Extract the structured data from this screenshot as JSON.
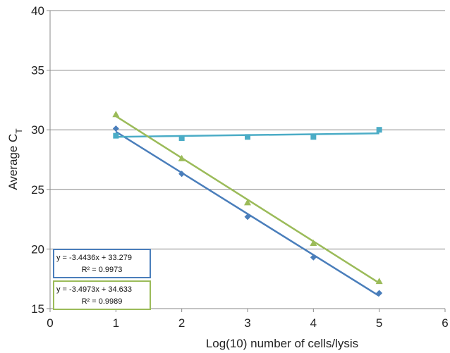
{
  "chart_data": {
    "type": "scatter",
    "xlabel": "Log(10) number of cells/lysis",
    "ylabel": {
      "main": "Average C",
      "sub": "T"
    },
    "xlim": [
      0,
      6
    ],
    "ylim": [
      15,
      40
    ],
    "x_ticks": [
      "0",
      "1",
      "2",
      "3",
      "4",
      "5",
      "6"
    ],
    "y_ticks": [
      "15",
      "20",
      "25",
      "30",
      "35",
      "40"
    ],
    "grid": "horizontal",
    "series": [
      {
        "marker": "diamond",
        "color": "#4a7ebb",
        "x": [
          1,
          2,
          3,
          4,
          5
        ],
        "y": [
          30.1,
          26.3,
          22.7,
          19.3,
          16.3
        ],
        "trendline": {
          "slope": -3.4436,
          "intercept": 33.279
        },
        "equation": "y = -3.4436x + 33.279",
        "r2": "R² = 0.9973"
      },
      {
        "marker": "square",
        "color": "#4bacc6",
        "x": [
          1,
          2,
          3,
          4,
          5
        ],
        "y": [
          29.5,
          29.3,
          29.4,
          29.4,
          30.0
        ],
        "trendline": {
          "slope": 0.075,
          "intercept": 29.33
        }
      },
      {
        "marker": "triangle",
        "color": "#9bbb59",
        "x": [
          1,
          2,
          3,
          4,
          5
        ],
        "y": [
          31.3,
          27.6,
          23.9,
          20.5,
          17.3
        ],
        "trendline": {
          "slope": -3.4973,
          "intercept": 34.633
        },
        "equation": "y = -3.4973x + 34.633",
        "r2": "R² = 0.9989"
      }
    ]
  }
}
